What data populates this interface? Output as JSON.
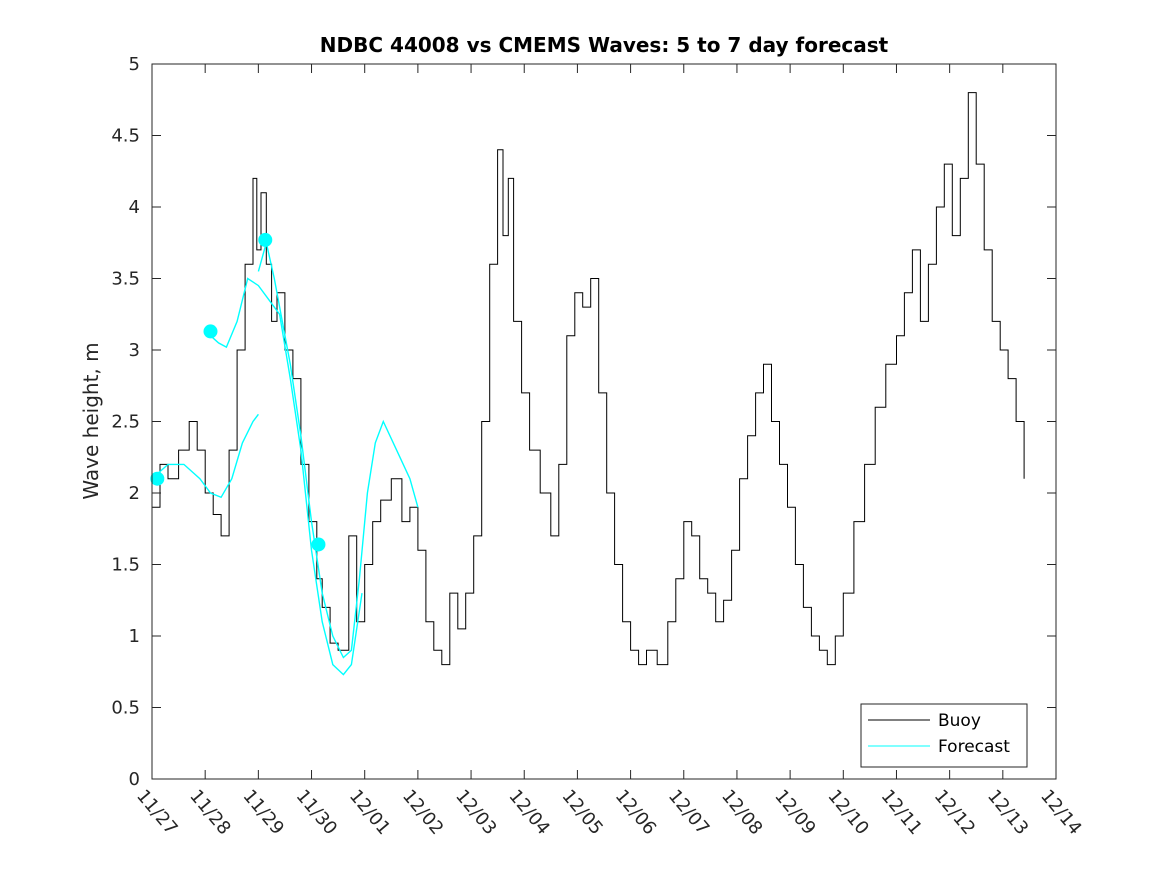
{
  "chart_data": {
    "type": "line",
    "title": "NDBC 44008 vs CMEMS Waves: 5 to 7 day forecast",
    "xlabel": "",
    "ylabel": "Wave height, m",
    "xlim": [
      0,
      17
    ],
    "ylim": [
      0,
      5
    ],
    "grid": false,
    "legend_position": "bottom-right",
    "x_ticks": [
      {
        "value": 0,
        "label": "11/27"
      },
      {
        "value": 1,
        "label": "11/28"
      },
      {
        "value": 2,
        "label": "11/29"
      },
      {
        "value": 3,
        "label": "11/30"
      },
      {
        "value": 4,
        "label": "12/01"
      },
      {
        "value": 5,
        "label": "12/02"
      },
      {
        "value": 6,
        "label": "12/03"
      },
      {
        "value": 7,
        "label": "12/04"
      },
      {
        "value": 8,
        "label": "12/05"
      },
      {
        "value": 9,
        "label": "12/06"
      },
      {
        "value": 10,
        "label": "12/07"
      },
      {
        "value": 11,
        "label": "12/08"
      },
      {
        "value": 12,
        "label": "12/09"
      },
      {
        "value": 13,
        "label": "12/10"
      },
      {
        "value": 14,
        "label": "12/11"
      },
      {
        "value": 15,
        "label": "12/12"
      },
      {
        "value": 16,
        "label": "12/13"
      },
      {
        "value": 17,
        "label": "12/14"
      }
    ],
    "y_ticks": [
      {
        "value": 0,
        "label": "0"
      },
      {
        "value": 0.5,
        "label": "0.5"
      },
      {
        "value": 1,
        "label": "1"
      },
      {
        "value": 1.5,
        "label": "1.5"
      },
      {
        "value": 2,
        "label": "2"
      },
      {
        "value": 2.5,
        "label": "2.5"
      },
      {
        "value": 3,
        "label": "3"
      },
      {
        "value": 3.5,
        "label": "3.5"
      },
      {
        "value": 4,
        "label": "4"
      },
      {
        "value": 4.5,
        "label": "4.5"
      },
      {
        "value": 5,
        "label": "5"
      }
    ],
    "series": [
      {
        "name": "Buoy",
        "color": "#000000",
        "x": [
          0,
          0.15,
          0.3,
          0.5,
          0.7,
          0.85,
          1.0,
          1.15,
          1.3,
          1.45,
          1.6,
          1.75,
          1.9,
          1.97,
          2.05,
          2.15,
          2.25,
          2.35,
          2.5,
          2.65,
          2.8,
          2.95,
          3.1,
          3.2,
          3.35,
          3.5,
          3.7,
          3.85,
          4.0,
          4.15,
          4.3,
          4.5,
          4.7,
          4.85,
          5.0,
          5.15,
          5.3,
          5.45,
          5.6,
          5.75,
          5.9,
          6.05,
          6.2,
          6.35,
          6.5,
          6.6,
          6.7,
          6.8,
          6.95,
          7.1,
          7.3,
          7.5,
          7.65,
          7.8,
          7.95,
          8.1,
          8.25,
          8.4,
          8.55,
          8.7,
          8.85,
          9.0,
          9.15,
          9.3,
          9.5,
          9.7,
          9.85,
          10.0,
          10.15,
          10.3,
          10.45,
          10.6,
          10.75,
          10.9,
          11.05,
          11.2,
          11.35,
          11.5,
          11.65,
          11.8,
          11.95,
          12.1,
          12.25,
          12.4,
          12.55,
          12.7,
          12.85,
          13.0,
          13.2,
          13.4,
          13.6,
          13.8,
          14.0,
          14.15,
          14.3,
          14.45,
          14.6,
          14.75,
          14.9,
          15.05,
          15.2,
          15.35,
          15.5,
          15.65,
          15.8,
          15.95,
          16.1,
          16.25,
          16.4
        ],
        "values": [
          1.9,
          2.2,
          2.1,
          2.3,
          2.5,
          2.3,
          2.0,
          1.85,
          1.7,
          2.3,
          3.0,
          3.6,
          4.2,
          3.7,
          4.1,
          3.6,
          3.2,
          3.4,
          3.0,
          2.8,
          2.2,
          1.8,
          1.4,
          1.2,
          0.95,
          0.9,
          1.7,
          1.1,
          1.5,
          1.8,
          1.95,
          2.1,
          1.8,
          1.9,
          1.6,
          1.1,
          0.9,
          0.8,
          1.3,
          1.05,
          1.3,
          1.7,
          2.5,
          3.6,
          4.4,
          3.8,
          4.2,
          3.2,
          2.7,
          2.3,
          2.0,
          1.7,
          2.2,
          3.1,
          3.4,
          3.3,
          3.5,
          2.7,
          2.0,
          1.5,
          1.1,
          0.9,
          0.8,
          0.9,
          0.8,
          1.1,
          1.4,
          1.8,
          1.7,
          1.4,
          1.3,
          1.1,
          1.25,
          1.6,
          2.1,
          2.4,
          2.7,
          2.9,
          2.5,
          2.2,
          1.9,
          1.5,
          1.2,
          1.0,
          0.9,
          0.8,
          1.0,
          1.3,
          1.8,
          2.2,
          2.6,
          2.9,
          3.1,
          3.4,
          3.7,
          3.2,
          3.6,
          4.0,
          4.3,
          3.8,
          4.2,
          4.8,
          4.3,
          3.7,
          3.2,
          3.0,
          2.8,
          2.5,
          2.1
        ]
      },
      {
        "name": "Forecast",
        "color": "#00ffff",
        "x": [
          0,
          0.3,
          0.6,
          0.9,
          1.1,
          1.3,
          1.5,
          1.7,
          1.9,
          2.0
        ],
        "values": [
          2.1,
          2.2,
          2.2,
          2.1,
          2.0,
          1.97,
          2.1,
          2.35,
          2.5,
          2.55
        ],
        "segments": [
          {
            "x": [
              0,
              0.3,
              0.6,
              0.9,
              1.1,
              1.3,
              1.5,
              1.7,
              1.9,
              2.0
            ],
            "values": [
              2.1,
              2.2,
              2.2,
              2.1,
              2.0,
              1.97,
              2.1,
              2.35,
              2.5,
              2.55
            ]
          },
          {
            "x": [
              1.1,
              1.25,
              1.4,
              1.6,
              1.8,
              2.0,
              2.2,
              2.4,
              2.6,
              2.8,
              3.0,
              3.2,
              3.4,
              3.6,
              3.75,
              3.95
            ],
            "values": [
              3.1,
              3.05,
              3.02,
              3.2,
              3.5,
              3.45,
              3.35,
              3.25,
              2.8,
              2.3,
              1.6,
              1.1,
              0.8,
              0.73,
              0.8,
              1.3
            ]
          },
          {
            "x": [
              2.0,
              2.15,
              2.3,
              2.45,
              2.6,
              2.8,
              3.0,
              3.2,
              3.4,
              3.6,
              3.75,
              3.9,
              4.05,
              4.2,
              4.35,
              4.6,
              4.85,
              5.0
            ],
            "values": [
              3.55,
              3.75,
              3.5,
              3.2,
              2.9,
              2.4,
              1.8,
              1.3,
              1.0,
              0.85,
              0.9,
              1.4,
              2.0,
              2.35,
              2.5,
              2.3,
              2.1,
              1.9
            ]
          }
        ],
        "markers": [
          {
            "x": 0.1,
            "value": 2.1
          },
          {
            "x": 1.1,
            "value": 3.13
          },
          {
            "x": 2.13,
            "value": 3.77
          },
          {
            "x": 3.13,
            "value": 1.64
          }
        ]
      }
    ]
  }
}
